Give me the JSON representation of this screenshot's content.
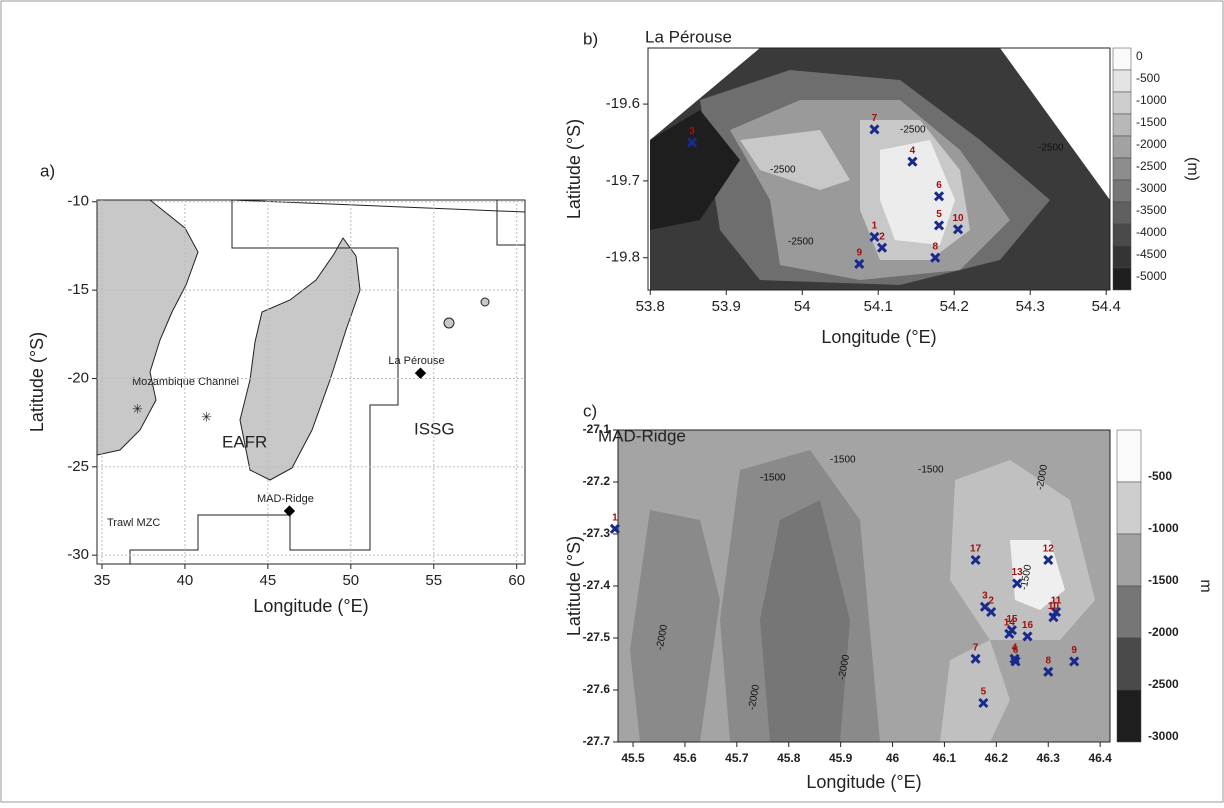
{
  "panels": [
    {
      "label": "a)",
      "xlabel": "Longitude (°E)",
      "ylabel": "Latitude (°S)",
      "xlim": [
        34.7,
        60.5
      ],
      "ylim": [
        -30.5,
        -9.9
      ],
      "xticks": [
        35,
        40,
        45,
        50,
        55,
        60
      ],
      "yticks": [
        -10,
        -15,
        -20,
        -25,
        -30
      ],
      "region_labels": [
        "Mozambique Channel",
        "EAFR",
        "ISSG",
        "Trawl MZC"
      ],
      "sites": [
        {
          "label": "La Pérouse",
          "lon": 54.2,
          "lat": -19.7
        },
        {
          "label": "MAD-Ridge",
          "lon": 46.3,
          "lat": -27.5
        }
      ]
    },
    {
      "label": "b)",
      "title": "La Pérouse",
      "xlabel": "Longitude (°E)",
      "ylabel": "Latitude (°S)",
      "xlim": [
        53.797,
        54.405
      ],
      "ylim": [
        -19.842,
        -19.527
      ],
      "xticks": [
        53.8,
        53.9,
        54,
        54.1,
        54.2,
        54.3,
        54.4
      ],
      "yticks": [
        -19.6,
        -19.7,
        -19.8
      ],
      "colorbar_title": "(m)",
      "colorbar_ticks": [
        0,
        -500,
        -1000,
        -1500,
        -2000,
        -2500,
        -3000,
        -3500,
        -4000,
        -4500,
        -5000
      ],
      "contour_labels": [
        "-2500",
        "-2500",
        "-2500",
        "-2500"
      ],
      "stations": [
        {
          "id": 3,
          "lon": 53.855,
          "lat": -19.65
        },
        {
          "id": 7,
          "lon": 54.095,
          "lat": -19.633
        },
        {
          "id": 4,
          "lon": 54.145,
          "lat": -19.675
        },
        {
          "id": 6,
          "lon": 54.18,
          "lat": -19.72
        },
        {
          "id": 5,
          "lon": 54.18,
          "lat": -19.758
        },
        {
          "id": 10,
          "lon": 54.205,
          "lat": -19.763
        },
        {
          "id": 1,
          "lon": 54.095,
          "lat": -19.773
        },
        {
          "id": 2,
          "lon": 54.105,
          "lat": -19.787
        },
        {
          "id": 9,
          "lon": 54.075,
          "lat": -19.808
        },
        {
          "id": 8,
          "lon": 54.175,
          "lat": -19.8
        }
      ]
    },
    {
      "label": "c)",
      "title": "MAD-Ridge",
      "xlabel": "Longitude (°E)",
      "ylabel": "Latitude (°S)",
      "xlim": [
        45.471,
        46.419
      ],
      "ylim": [
        -27.7,
        -27.1
      ],
      "xticks": [
        45.5,
        45.6,
        45.7,
        45.8,
        45.9,
        46,
        46.1,
        46.2,
        46.3,
        46.4
      ],
      "yticks": [
        -27.1,
        -27.2,
        -27.3,
        -27.4,
        -27.5,
        -27.6,
        -27.7
      ],
      "colorbar_title": "m",
      "colorbar_ticks": [
        -500,
        -1000,
        -1500,
        -2000,
        -2500,
        -3000
      ],
      "contour_labels": [
        "-1500",
        "-1500",
        "-1500",
        "-2000",
        "-2000",
        "-2000",
        "-2000",
        "-1500"
      ],
      "stations": [
        {
          "id": 1,
          "lon": 45.465,
          "lat": -27.29
        },
        {
          "id": 17,
          "lon": 46.16,
          "lat": -27.35
        },
        {
          "id": 12,
          "lon": 46.3,
          "lat": -27.35
        },
        {
          "id": 13,
          "lon": 46.24,
          "lat": -27.395
        },
        {
          "id": 3,
          "lon": 46.178,
          "lat": -27.44
        },
        {
          "id": 2,
          "lon": 46.19,
          "lat": -27.45
        },
        {
          "id": 11,
          "lon": 46.315,
          "lat": -27.45
        },
        {
          "id": 10,
          "lon": 46.31,
          "lat": -27.46
        },
        {
          "id": 15,
          "lon": 46.23,
          "lat": -27.485
        },
        {
          "id": 14,
          "lon": 46.225,
          "lat": -27.492
        },
        {
          "id": 16,
          "lon": 46.26,
          "lat": -27.497
        },
        {
          "id": 4,
          "lon": 46.235,
          "lat": -27.54
        },
        {
          "id": 6,
          "lon": 46.237,
          "lat": -27.545
        },
        {
          "id": 7,
          "lon": 46.16,
          "lat": -27.54
        },
        {
          "id": 8,
          "lon": 46.3,
          "lat": -27.565
        },
        {
          "id": 9,
          "lon": 46.35,
          "lat": -27.545
        },
        {
          "id": 5,
          "lon": 46.175,
          "lat": -27.625
        }
      ]
    }
  ]
}
